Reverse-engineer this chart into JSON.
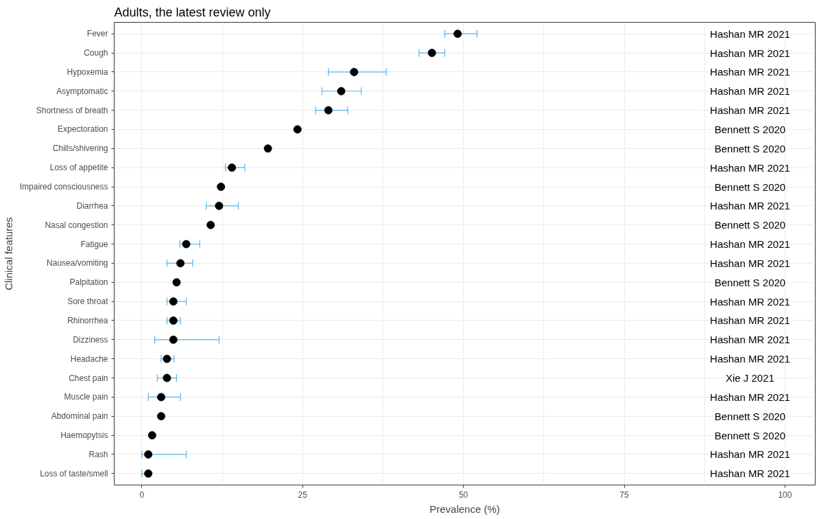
{
  "chart_data": {
    "type": "scatter",
    "title": "Adults, the latest review only",
    "xlabel": "Prevalence (%)",
    "ylabel": "Clinical features",
    "categories": [
      "Fever",
      "Cough",
      "Hypoxemia",
      "Asymptomatic",
      "Shortness of breath",
      "Expectoration",
      "Chills/shivering",
      "Loss of appetite",
      "Impaired consciousness",
      "Diarrhea",
      "Nasal congestion",
      "Fatigue",
      "Nausea/vomiting",
      "Palpitation",
      "Sore throat",
      "Rhinorrhea",
      "Dizziness",
      "Headache",
      "Chest pain",
      "Muscle pain",
      "Abdominal pain",
      "Haemopytsis",
      "Rash",
      "Loss of taste/smell"
    ],
    "orientation": "horizontal",
    "series": [
      {
        "color": "#000000",
        "values": [
          49.1,
          45.1,
          33.0,
          31.0,
          29.0,
          24.2,
          19.6,
          14.0,
          12.3,
          12.0,
          10.7,
          6.9,
          6.0,
          5.4,
          4.9,
          4.9,
          4.9,
          3.9,
          3.9,
          3.0,
          3.0,
          1.6,
          1.0,
          1.0
        ],
        "errors": [
          [
            47.1,
            52.1
          ],
          [
            43.1,
            47.1
          ],
          [
            29.0,
            38.0
          ],
          [
            28.0,
            34.1
          ],
          [
            27.0,
            32.0
          ],
          null,
          null,
          [
            13.0,
            16.0
          ],
          null,
          [
            10.0,
            15.0
          ],
          null,
          [
            5.9,
            9.0
          ],
          [
            3.9,
            7.9
          ],
          null,
          [
            3.9,
            6.9
          ],
          [
            3.9,
            6.0
          ],
          [
            2.0,
            12.0
          ],
          [
            3.0,
            5.0
          ],
          [
            2.4,
            5.4
          ],
          [
            1.0,
            6.0
          ],
          null,
          null,
          [
            0,
            6.9
          ],
          [
            0,
            1.0
          ]
        ]
      }
    ],
    "annotations": [
      "Hashan MR 2021",
      "Hashan MR 2021",
      "Hashan MR 2021",
      "Hashan MR 2021",
      "Hashan MR 2021",
      "Bennett S 2020",
      "Bennett S 2020",
      "Hashan MR 2021",
      "Bennett S 2020",
      "Hashan MR 2021",
      "Bennett S 2020",
      "Hashan MR 2021",
      "Hashan MR 2021",
      "Bennett S 2020",
      "Hashan MR 2021",
      "Hashan MR 2021",
      "Hashan MR 2021",
      "Hashan MR 2021",
      "Xie J 2021",
      "Hashan MR 2021",
      "Bennett S 2020",
      "Bennett S 2020",
      "Hashan MR 2021",
      "Hashan MR 2021"
    ],
    "xlim": [
      -4.3,
      104.7
    ],
    "xticks": [
      0,
      25,
      50,
      75,
      100
    ],
    "grid": true,
    "marker": "circle"
  }
}
